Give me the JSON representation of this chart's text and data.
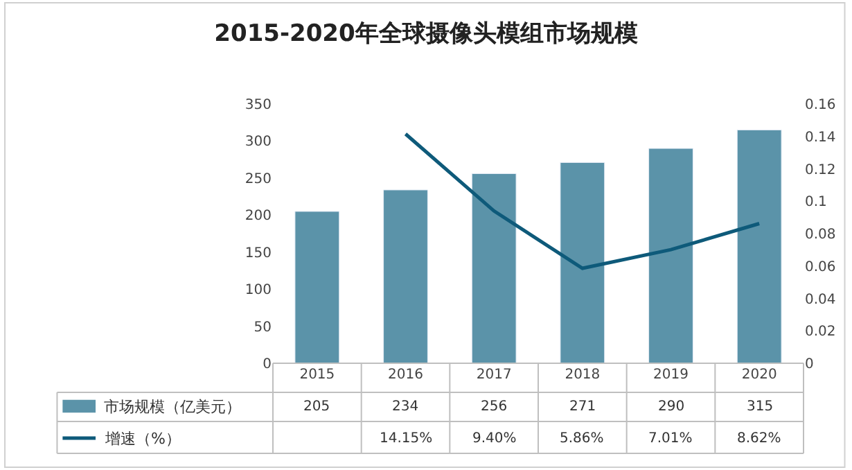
{
  "chart_data": {
    "type": "bar",
    "title": "2015-2020年全球摄像头模组市场规模",
    "categories": [
      "2015",
      "2016",
      "2017",
      "2018",
      "2019",
      "2020"
    ],
    "series": [
      {
        "name": "市场规模（亿美元）",
        "color": "#5b93a9",
        "values": [
          205,
          234,
          256,
          271,
          290,
          315
        ]
      },
      {
        "name": "增速（%）",
        "type": "line",
        "axis": "y2",
        "color": "#0e5a7a",
        "values": [
          null,
          0.1415,
          0.094,
          0.0586,
          0.0701,
          0.0862
        ],
        "value_labels": [
          null,
          "14.15%",
          "9.40%",
          "5.86%",
          "7.01%",
          "8.62%"
        ]
      }
    ],
    "data_labels": true,
    "ylim": [
      0,
      350
    ],
    "yticks": [
      0,
      50,
      100,
      150,
      200,
      250,
      300,
      350
    ],
    "y2lim": [
      0,
      0.16
    ],
    "y2ticks": [
      0,
      0.02,
      0.04,
      0.06,
      0.08,
      0.1,
      0.12,
      0.14,
      0.16
    ],
    "marker": "none",
    "legend": "bottom left"
  }
}
